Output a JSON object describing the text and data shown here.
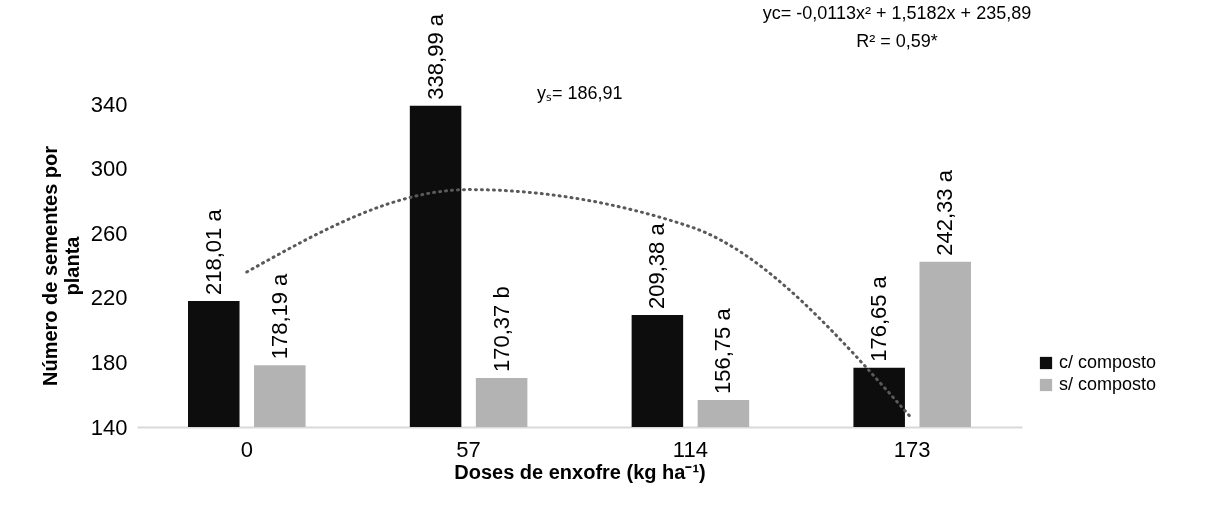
{
  "chart_data": {
    "type": "bar",
    "xlabel": "Doses de enxofre (kg ha⁻¹)",
    "ylabel": "Número de sementes por planta",
    "categories": [
      "0",
      "57",
      "114",
      "173"
    ],
    "series": [
      {
        "name": "c/ composto",
        "color": "#0d0d0d",
        "values": [
          218.01,
          338.99,
          209.38,
          176.65
        ],
        "value_labels": [
          "218,01 a",
          "338,99 a",
          "209,38 a",
          "176,65 a"
        ]
      },
      {
        "name": "s/ composto",
        "color": "#b3b3b3",
        "values": [
          178.19,
          170.37,
          156.75,
          242.33
        ],
        "value_labels": [
          "178,19 a",
          "170,37 b",
          "156,75 a",
          "242,33 a"
        ]
      },
      {
        "type": "line",
        "color": "#595959",
        "line_style": "dotted",
        "values": [
          236,
          287,
          264,
          145
        ]
      }
    ],
    "ylim": [
      140,
      340
    ],
    "yticks": [
      140,
      180,
      220,
      260,
      300,
      340
    ],
    "legend": "right",
    "annotations": [
      "yc= -0,0113x² + 1,5182x + 235,89",
      "R² = 0,59*",
      "yₛ= 186,91"
    ]
  }
}
